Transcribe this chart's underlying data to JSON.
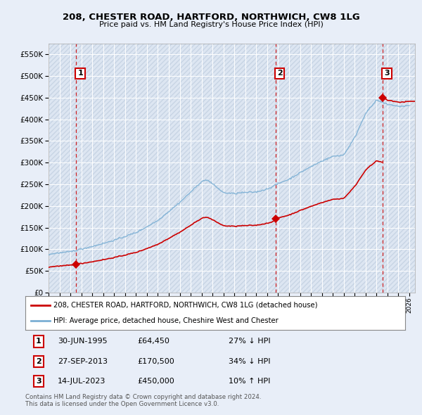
{
  "title": "208, CHESTER ROAD, HARTFORD, NORTHWICH, CW8 1LG",
  "subtitle": "Price paid vs. HM Land Registry's House Price Index (HPI)",
  "ylim": [
    0,
    575000
  ],
  "yticks": [
    0,
    50000,
    100000,
    150000,
    200000,
    250000,
    300000,
    350000,
    400000,
    450000,
    500000,
    550000
  ],
  "xlim_start": 1993.0,
  "xlim_end": 2026.5,
  "sale_dates": [
    1995.5,
    2013.75,
    2023.54
  ],
  "sale_prices": [
    64450,
    170500,
    450000
  ],
  "sale_labels": [
    "1",
    "2",
    "3"
  ],
  "hpi_line_color": "#7bafd4",
  "sale_line_color": "#cc0000",
  "sale_dot_color": "#cc0000",
  "vline_color": "#cc0000",
  "background_color": "#e8eef8",
  "plot_bg_color": "#dde6f2",
  "grid_color": "#ffffff",
  "legend_line1": "208, CHESTER ROAD, HARTFORD, NORTHWICH, CW8 1LG (detached house)",
  "legend_line2": "HPI: Average price, detached house, Cheshire West and Chester",
  "table_rows": [
    [
      "1",
      "30-JUN-1995",
      "£64,450",
      "27% ↓ HPI"
    ],
    [
      "2",
      "27-SEP-2013",
      "£170,500",
      "34% ↓ HPI"
    ],
    [
      "3",
      "14-JUL-2023",
      "£450,000",
      "10% ↑ HPI"
    ]
  ],
  "footnote": "Contains HM Land Registry data © Crown copyright and database right 2024.\nThis data is licensed under the Open Government Licence v3.0."
}
